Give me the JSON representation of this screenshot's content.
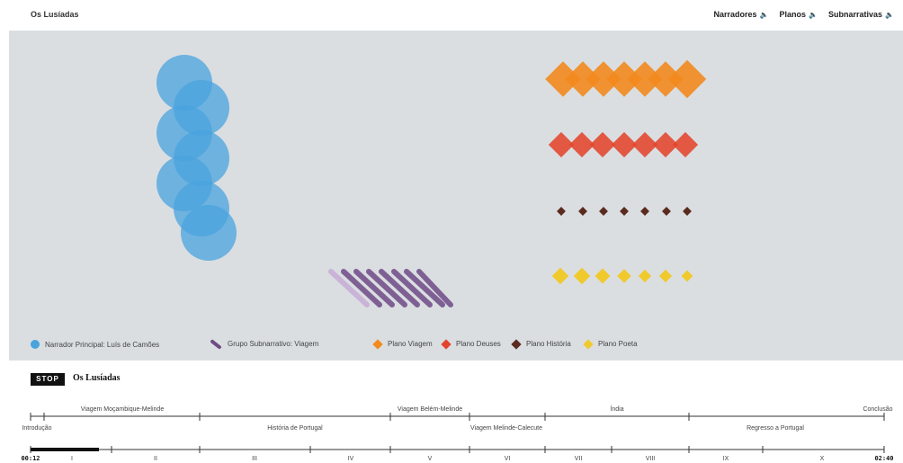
{
  "header": {
    "title": "Os Lusíadas",
    "nav": [
      {
        "label": "Narradores"
      },
      {
        "label": "Planos"
      },
      {
        "label": "Subnarrativas"
      }
    ],
    "speaker_glyph": "🔈"
  },
  "legend": {
    "narrator": "Narrador Principal: Luís de Camões",
    "subnarrative": "Grupo Subnarrativo: Viagem",
    "planes": [
      {
        "label": "Plano Viagem",
        "color": "#f28a1e"
      },
      {
        "label": "Plano Deuses",
        "color": "#e2452b"
      },
      {
        "label": "Plano História",
        "color": "#5a2b1e"
      },
      {
        "label": "Plano Poeta",
        "color": "#f0c92c"
      }
    ]
  },
  "colors": {
    "narrator": "#4aa3dd",
    "subnarrative": "#6f4a86",
    "background": "#dadee1"
  },
  "player": {
    "stop_label": "STOP",
    "title": "Os Lusíadas",
    "time_current": "00:12",
    "time_total": "02:40",
    "progress_fraction": 0.08
  },
  "timeline": {
    "top_sections": [
      "Viagem Moçambique-Melinde",
      "Viagem Belém-Melinde",
      "Índia",
      "Conclusão"
    ],
    "middle_sections": [
      "Introdução",
      "História de Portugal",
      "Viagem Melinde-Calecute",
      "Regresso a Portugal"
    ],
    "cantos": [
      "I",
      "II",
      "III",
      "IV",
      "V",
      "VI",
      "VII",
      "VIII",
      "IX",
      "X"
    ]
  }
}
